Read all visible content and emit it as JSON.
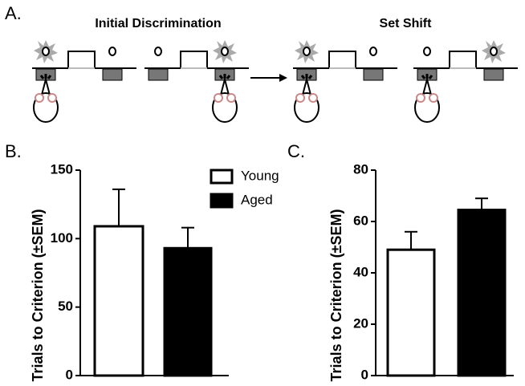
{
  "diagram": {
    "label": "A.",
    "left_title": "Initial Discrimination",
    "right_title": "Set Shift"
  },
  "chart_data": [
    {
      "type": "bar",
      "label": "B.",
      "y_label": "Trials to Criterion (±SEM)",
      "categories": [
        null
      ],
      "series": [
        {
          "name": "Young",
          "color": "#ffffff",
          "values": [
            109
          ],
          "errors": [
            27
          ]
        },
        {
          "name": "Aged",
          "color": "#000000",
          "values": [
            93
          ],
          "errors": [
            15
          ]
        }
      ],
      "ylim": [
        0,
        150
      ],
      "yticks": [
        0,
        50,
        100,
        150
      ],
      "legend": "top-right"
    },
    {
      "type": "bar",
      "label": "C.",
      "y_label": "Trials to Criterion (±SEM)",
      "categories": [
        null
      ],
      "series": [
        {
          "color": "#ffffff",
          "values": [
            49
          ],
          "errors": [
            7
          ]
        },
        {
          "color": "#000000",
          "values": [
            64.5
          ],
          "errors": [
            4.5
          ]
        }
      ],
      "ylim": [
        0,
        80
      ],
      "yticks": [
        0,
        20,
        40,
        60,
        80
      ]
    }
  ]
}
